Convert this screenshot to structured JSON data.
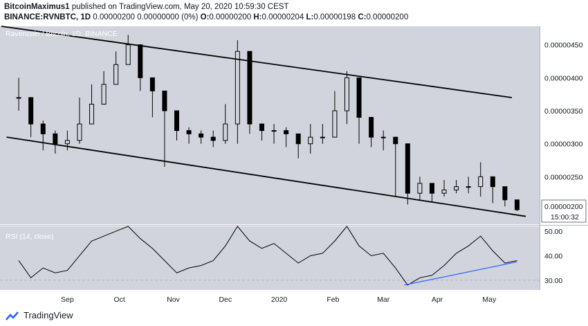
{
  "header": {
    "author": "BitcoinMaximus1",
    "published": "published on TradingView.com, May 20, 2020 10:59:30 CEST",
    "symbol": "BINANCE:RVNBTC, 1D",
    "price_line": "0.00000200 0.00000000 (0%)",
    "o_label": "O:",
    "o_value": "0.00000200",
    "h_label": "H:",
    "h_value": "0.00000204",
    "l_label": "L:",
    "l_value": "0.00000198",
    "c_label": "C:",
    "c_value": "0.00000200"
  },
  "footer": {
    "brand": "TradingView"
  },
  "colors": {
    "pane_bg": "#d1d4dc",
    "candle": "#000000",
    "trendline": "#000000",
    "rsi_trendline": "#2962ff",
    "axis_text": "#131722",
    "price_badge_bg": "#ffffff"
  },
  "chart_data": [
    {
      "type": "candlestick",
      "title": "Ravencoin / Bitcoin, 1D, BINANCE",
      "x_tick_labels": [
        "Sep",
        "Oct",
        "Nov",
        "Dec",
        "2020",
        "Feb",
        "Mar",
        "Apr",
        "May"
      ],
      "y_tick_labels": [
        "0.00000450",
        "0.00000400",
        "0.00000350",
        "0.00000300",
        "0.00000250"
      ],
      "ylim": [
        1.78e-06,
        4.78e-06
      ],
      "last_price_label": "0.00000200",
      "countdown_label": "15:00:32",
      "series": [
        {
          "x": [
            "2019-08-04",
            "2019-08-11",
            "2019-08-18",
            "2019-08-25",
            "2019-09-01",
            "2019-09-08",
            "2019-09-15",
            "2019-09-22",
            "2019-09-29",
            "2019-10-06",
            "2019-10-13",
            "2019-10-20",
            "2019-10-27",
            "2019-11-03",
            "2019-11-10",
            "2019-11-17",
            "2019-11-24",
            "2019-12-01",
            "2019-12-08",
            "2019-12-15",
            "2019-12-22",
            "2019-12-29",
            "2020-01-05",
            "2020-01-12",
            "2020-01-19",
            "2020-01-26",
            "2020-02-02",
            "2020-02-09",
            "2020-02-16",
            "2020-02-23",
            "2020-03-01",
            "2020-03-08",
            "2020-03-15",
            "2020-03-22",
            "2020-03-29",
            "2020-04-05",
            "2020-04-12",
            "2020-04-19",
            "2020-04-26",
            "2020-05-03",
            "2020-05-10",
            "2020-05-17"
          ],
          "close": [
            3.7e-06,
            3.3e-06,
            3.15e-06,
            3e-06,
            3.05e-06,
            3.3e-06,
            3.6e-06,
            3.9e-06,
            4.2e-06,
            4.5e-06,
            4e-06,
            3.8e-06,
            3.5e-06,
            3.2e-06,
            3.15e-06,
            3.1e-06,
            3.05e-06,
            3.3e-06,
            4.4e-06,
            3.3e-06,
            3.2e-06,
            3.2e-06,
            3.15e-06,
            3e-06,
            3.1e-06,
            3.1e-06,
            3.5e-06,
            4e-06,
            3.4e-06,
            3.1e-06,
            3.1e-06,
            3e-06,
            2.25e-06,
            2.4e-06,
            2.25e-06,
            2.3e-06,
            2.35e-06,
            2.35e-06,
            2.5e-06,
            2.35e-06,
            2.15e-06,
            2e-06
          ],
          "high": [
            4e-06,
            3.55e-06,
            3.35e-06,
            3.2e-06,
            3.2e-06,
            3.7e-06,
            3.9e-06,
            4.1e-06,
            4.4e-06,
            4.65e-06,
            4.2e-06,
            4e-06,
            3.6e-06,
            3.35e-06,
            3.25e-06,
            3.2e-06,
            3.2e-06,
            3.6e-06,
            4.57e-06,
            3.5e-06,
            3.3e-06,
            3.3e-06,
            3.25e-06,
            3.15e-06,
            3.3e-06,
            3.3e-06,
            3.8e-06,
            4.1e-06,
            3.6e-06,
            3.2e-06,
            3.2e-06,
            3.1e-06,
            2.5e-06,
            2.5e-06,
            2.4e-06,
            2.45e-06,
            2.45e-06,
            2.5e-06,
            2.72e-06,
            2.5e-06,
            2.25e-06,
            2.04e-06
          ],
          "low": [
            3.5e-06,
            3.1e-06,
            2.9e-06,
            2.85e-06,
            2.9e-06,
            3e-06,
            3.3e-06,
            3.7e-06,
            3.9e-06,
            4.2e-06,
            3.8e-06,
            3.4e-06,
            2.65e-06,
            3.05e-06,
            3e-06,
            3e-06,
            2.95e-06,
            3e-06,
            3e-06,
            3.15e-06,
            3.05e-06,
            3e-06,
            2.95e-06,
            2.78e-06,
            2.85e-06,
            3e-06,
            3.2e-06,
            3.3e-06,
            3e-06,
            2.95e-06,
            2.9e-06,
            2.2e-06,
            2.08e-06,
            2.15e-06,
            2.12e-06,
            2.2e-06,
            2.25e-06,
            2.25e-06,
            2.2e-06,
            2.1e-06,
            2.05e-06,
            1.98e-06
          ]
        }
      ],
      "annotations": [
        {
          "type": "trendline",
          "from": [
            "2019-07-25",
            4.78e-06
          ],
          "to": [
            "2020-05-14",
            3.7e-06
          ]
        },
        {
          "type": "trendline",
          "from": [
            "2019-07-28",
            3.1e-06
          ],
          "to": [
            "2020-05-22",
            1.9e-06
          ]
        }
      ]
    },
    {
      "type": "line",
      "title": "RSI (14, close)",
      "x_tick_labels": [
        "Sep",
        "Oct",
        "Nov",
        "Dec",
        "2020",
        "Feb",
        "Mar",
        "Apr",
        "May"
      ],
      "y_tick_labels": [
        "50.00",
        "40.00",
        "30.00"
      ],
      "ylim": [
        26,
        52
      ],
      "series": [
        {
          "x": [
            "2019-08-04",
            "2019-08-11",
            "2019-08-18",
            "2019-08-25",
            "2019-09-01",
            "2019-09-08",
            "2019-09-15",
            "2019-09-22",
            "2019-09-29",
            "2019-10-06",
            "2019-10-13",
            "2019-10-20",
            "2019-10-27",
            "2019-11-03",
            "2019-11-10",
            "2019-11-17",
            "2019-11-24",
            "2019-12-01",
            "2019-12-08",
            "2019-12-15",
            "2019-12-22",
            "2019-12-29",
            "2020-01-05",
            "2020-01-12",
            "2020-01-19",
            "2020-01-26",
            "2020-02-02",
            "2020-02-09",
            "2020-02-16",
            "2020-02-23",
            "2020-03-01",
            "2020-03-08",
            "2020-03-15",
            "2020-03-22",
            "2020-03-29",
            "2020-04-05",
            "2020-04-12",
            "2020-04-19",
            "2020-04-26",
            "2020-05-03",
            "2020-05-10",
            "2020-05-17"
          ],
          "values": [
            38,
            31,
            35,
            33,
            34,
            40,
            46,
            48,
            50,
            52,
            47,
            43,
            38,
            33,
            35,
            36,
            38,
            44,
            52,
            46,
            43,
            45,
            41,
            37,
            40,
            41,
            46,
            52,
            44,
            40,
            41,
            35,
            28,
            31,
            32,
            36,
            41,
            44,
            48,
            42,
            37,
            38
          ]
        }
      ],
      "annotations": [
        {
          "type": "trendline",
          "from": [
            "2020-03-13",
            28
          ],
          "to": [
            "2020-05-17",
            37.5
          ]
        }
      ]
    }
  ]
}
